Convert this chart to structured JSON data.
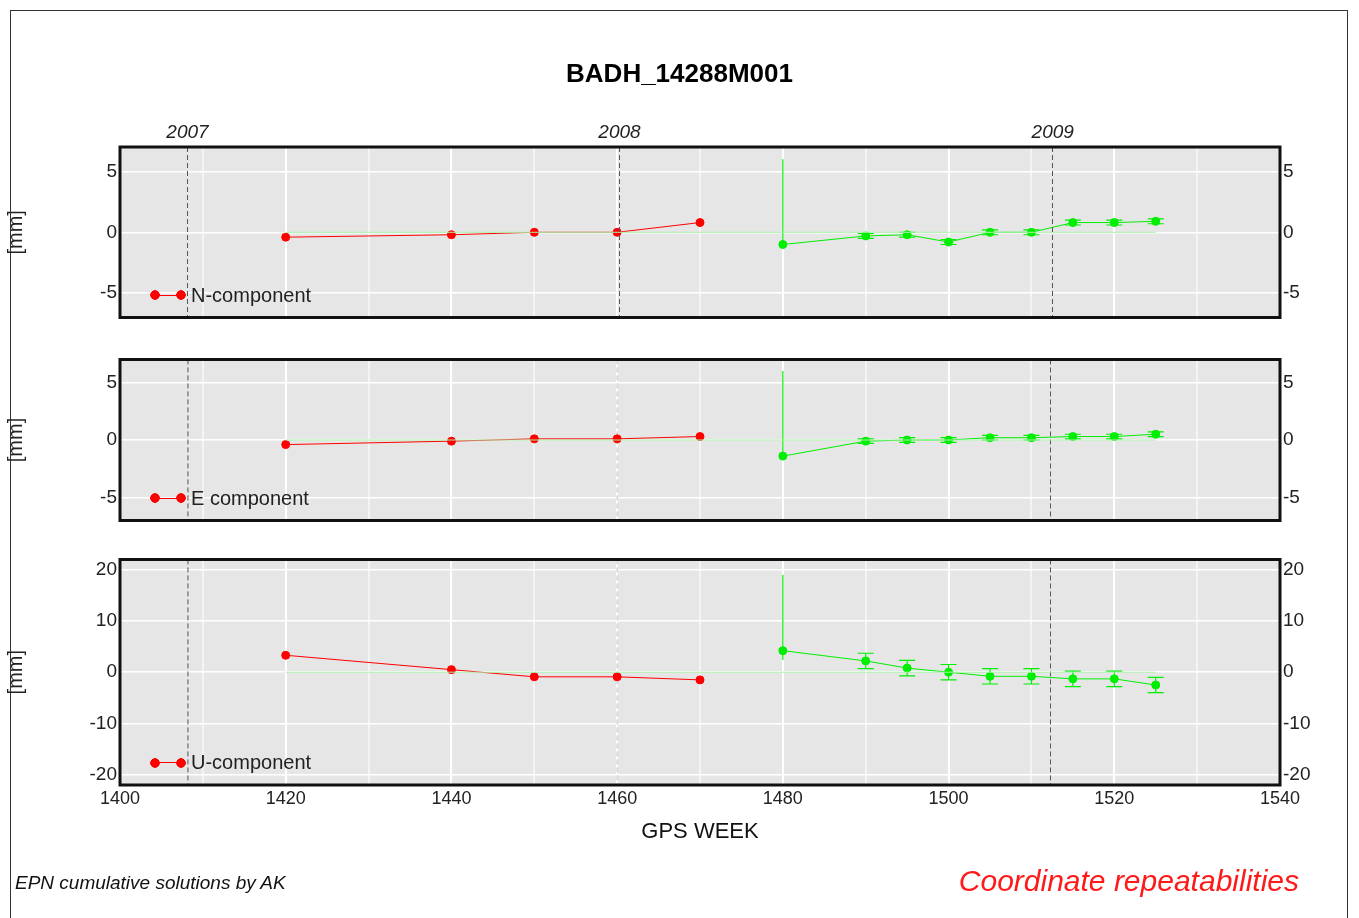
{
  "chart_data": [
    {
      "type": "line",
      "title": "BADH_14288M001",
      "ylabel": "[mm]",
      "xlim": [
        1400,
        1540
      ],
      "xticks": [
        1400,
        {
          "value": 1410,
          "label": null
        },
        1420,
        {
          "value": 1430,
          "label": null
        },
        1440,
        {
          "value": 1450,
          "label": null
        },
        1460,
        {
          "value": 1470,
          "label": null
        },
        1480,
        {
          "value": 1490,
          "label": null
        },
        1500,
        {
          "value": 1510,
          "label": null
        },
        1520,
        {
          "value": 1530,
          "label": null
        },
        1540
      ],
      "ylim": [
        -7,
        7
      ],
      "yticks": [
        -5,
        0,
        5
      ],
      "y2lim": [
        -7,
        7
      ],
      "y2ticks": [
        -5,
        0,
        5
      ],
      "tick_labels": "y",
      "grid": true,
      "legend": "bottom left",
      "marker": "circle",
      "line_style": "solid",
      "x2lim": [
        "2006-11-05",
        "2009-07-12"
      ],
      "x2ticks": [
        "2007",
        "2008",
        "2009"
      ],
      "series": [
        {
          "type": "line",
          "x": [
            1420,
            1525
          ],
          "values": [
            0,
            0
          ],
          "color": "#a8f0a8",
          "marker": "none"
        },
        {
          "name": "N-component",
          "x": [
            1420,
            1440,
            1450,
            1460,
            1470
          ],
          "values": [
            -0.4,
            -0.2,
            0,
            0,
            0.8
          ],
          "color": "#ff0000"
        },
        {
          "x": [
            1480,
            1490,
            1495,
            1500,
            1505,
            1510,
            1515,
            1520,
            1525
          ],
          "values": [
            -1,
            -0.3,
            -0.2,
            -0.8,
            0,
            0,
            0.8,
            0.8,
            0.9
          ],
          "errors": [
            [
              -1.2,
              6
            ],
            0.2,
            0.2,
            0.2,
            0.2,
            0.2,
            0.2,
            0.2,
            0.2
          ],
          "color": "#00ee00"
        }
      ]
    },
    {
      "type": "line",
      "ylabel": "[mm]",
      "xlim": [
        1400,
        1540
      ],
      "xticks": [
        1400,
        {
          "value": 1410,
          "label": null
        },
        1420,
        {
          "value": 1430,
          "label": null
        },
        1440,
        {
          "value": 1450,
          "label": null
        },
        1460,
        {
          "value": 1470,
          "label": null
        },
        1480,
        {
          "value": 1490,
          "label": null
        },
        1500,
        {
          "value": 1510,
          "label": null
        },
        1520,
        {
          "value": 1530,
          "label": null
        },
        1540
      ],
      "ylim": [
        -7,
        7
      ],
      "yticks": [
        -5,
        0,
        5
      ],
      "y2lim": [
        -7,
        7
      ],
      "y2ticks": [
        -5,
        0,
        5
      ],
      "tick_labels": "y",
      "grid": true,
      "legend": "bottom left",
      "marker": "circle",
      "line_style": "solid",
      "ref_lines": [
        {
          "axis": "x",
          "value": 1408.2,
          "color": "#555555",
          "line_style": "dashed"
        },
        {
          "axis": "x",
          "value": 1460,
          "color": "#bbbbbb",
          "line_style": "dashed"
        },
        {
          "axis": "x",
          "value": 1512.3,
          "color": "#555555",
          "line_style": "dashed"
        }
      ],
      "series": [
        {
          "type": "line",
          "x": [
            1420,
            1525
          ],
          "values": [
            0,
            0
          ],
          "color": "#a8f0a8",
          "marker": "none"
        },
        {
          "name": "E component",
          "x": [
            1420,
            1440,
            1450,
            1460,
            1470
          ],
          "values": [
            -0.4,
            -0.1,
            0.1,
            0.1,
            0.3
          ],
          "color": "#ff0000"
        },
        {
          "x": [
            1480,
            1490,
            1495,
            1500,
            1505,
            1510,
            1515,
            1520,
            1525
          ],
          "values": [
            -1.4,
            -0.1,
            0,
            0,
            0.2,
            0.2,
            0.3,
            0.3,
            0.5
          ],
          "errors": [
            [
              -1.6,
              6
            ],
            0.2,
            0.2,
            0.2,
            0.2,
            0.2,
            0.2,
            0.2,
            0.2
          ],
          "color": "#00ee00"
        }
      ]
    },
    {
      "type": "line",
      "ylabel": "[mm]",
      "xlabel": "GPS WEEK",
      "xlim": [
        1400,
        1540
      ],
      "xticks": [
        1400,
        {
          "value": 1410,
          "label": null
        },
        1420,
        {
          "value": 1430,
          "label": null
        },
        1440,
        {
          "value": 1450,
          "label": null
        },
        1460,
        {
          "value": 1470,
          "label": null
        },
        1480,
        {
          "value": 1490,
          "label": null
        },
        1500,
        {
          "value": 1510,
          "label": null
        },
        1520,
        {
          "value": 1530,
          "label": null
        },
        1540
      ],
      "ylim": [
        -22,
        22
      ],
      "yticks": [
        -20,
        -10,
        0,
        10,
        20
      ],
      "y2lim": [
        -22,
        22
      ],
      "y2ticks": [
        -20,
        -10,
        0,
        10,
        20
      ],
      "grid": true,
      "legend": "bottom left",
      "marker": "circle",
      "line_style": "solid",
      "ref_lines": [
        {
          "axis": "x",
          "value": 1408.2,
          "color": "#555555",
          "line_style": "dashed"
        },
        {
          "axis": "x",
          "value": 1460,
          "color": "#bbbbbb",
          "line_style": "dashed"
        },
        {
          "axis": "x",
          "value": 1512.3,
          "color": "#555555",
          "line_style": "dashed"
        }
      ],
      "annotations": [
        "EPN cumulative solutions by AK",
        "Coordinate repeatabilities"
      ],
      "series": [
        {
          "type": "line",
          "x": [
            1420,
            1525
          ],
          "values": [
            0,
            0
          ],
          "color": "#a8f0a8",
          "marker": "none"
        },
        {
          "name": "U-component",
          "x": [
            1420,
            1440,
            1450,
            1460,
            1470
          ],
          "values": [
            3.3,
            0.5,
            -0.9,
            -0.9,
            -1.5
          ],
          "color": "#ff0000"
        },
        {
          "x": [
            1480,
            1490,
            1495,
            1500,
            1505,
            1510,
            1515,
            1520,
            1525
          ],
          "values": [
            4.2,
            2.2,
            0.8,
            0,
            -0.8,
            -0.8,
            -1.3,
            -1.3,
            -2.5
          ],
          "errors": [
            [
              2.4,
              19
            ],
            1.5,
            1.5,
            1.5,
            1.5,
            1.5,
            1.5,
            1.5,
            1.5
          ],
          "color": "#00ee00"
        }
      ]
    }
  ]
}
